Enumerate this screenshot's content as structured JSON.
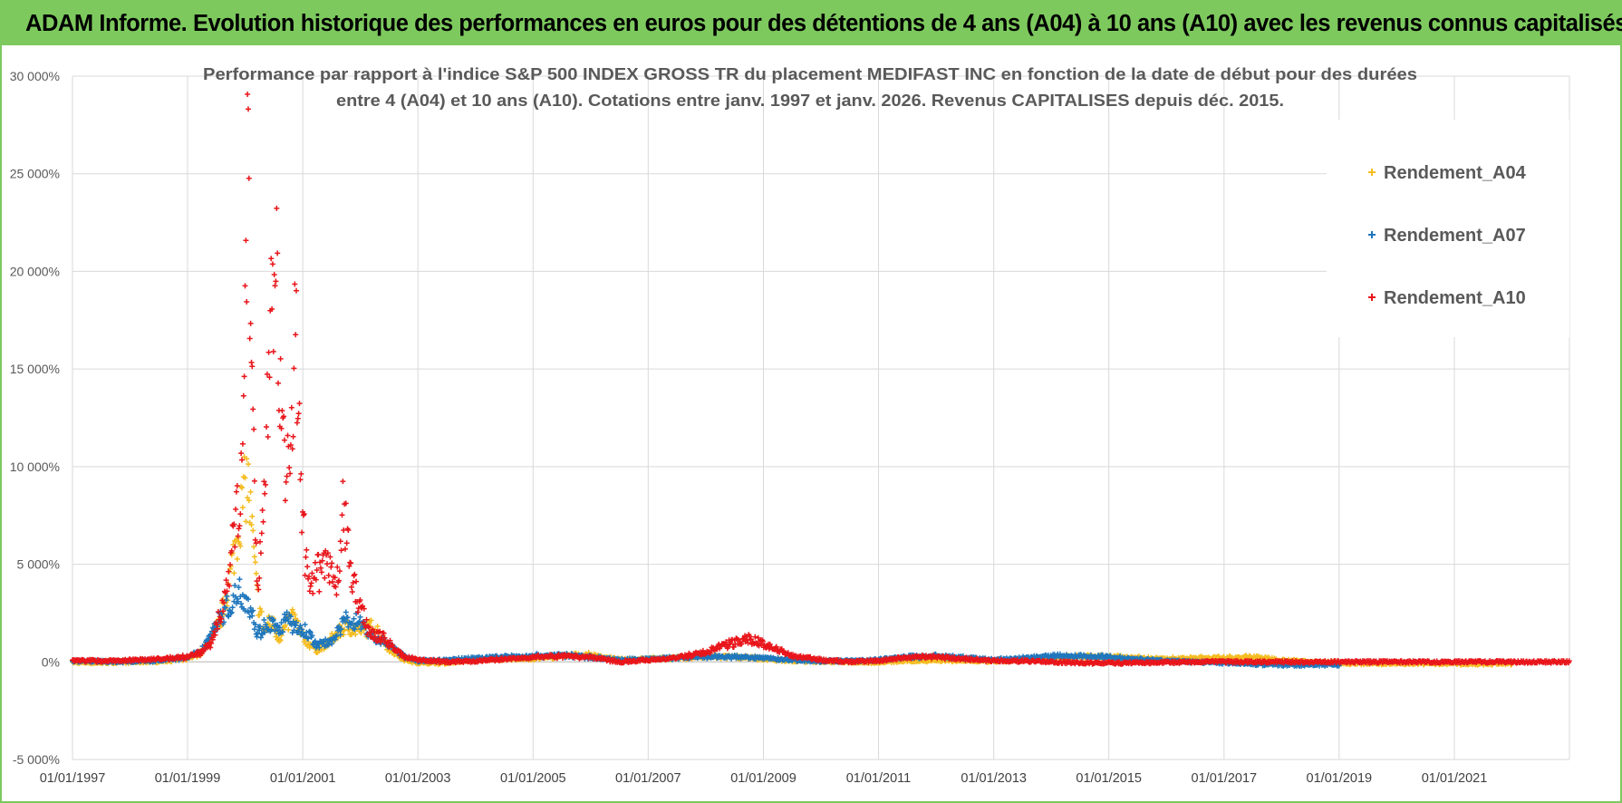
{
  "header": {
    "banner_title": "ADAM Informe. Evolution historique des performances en euros pour des détentions de 4 ans (A04) à 10 ans (A10) avec les revenus connus capitalisés"
  },
  "chart_data": {
    "type": "scatter",
    "title_line1": "Performance par rapport à l'indice S&P 500 INDEX GROSS TR  du placement MEDIFAST INC en fonction de la date de début pour des durées",
    "title_line2": "entre 4 (A04) et 10 ans (A10). Cotations entre janv. 1997 et janv. 2026. Revenus CAPITALISES depuis déc. 2015.",
    "xlabel": "",
    "ylabel": "",
    "x_tick_labels": [
      "01/01/1997",
      "01/01/1999",
      "01/01/2001",
      "01/01/2003",
      "01/01/2005",
      "01/01/2007",
      "01/01/2009",
      "01/01/2011",
      "01/01/2013",
      "01/01/2015",
      "01/01/2017",
      "01/01/2019",
      "01/01/2021"
    ],
    "xlim": [
      "1997-01-01",
      "2023-01-01"
    ],
    "y_tick_labels": [
      "30 000%",
      "25 000%",
      "20 000%",
      "15 000%",
      "10 000%",
      "5 000%",
      "0%",
      "-5 000%"
    ],
    "ylim": [
      -5000,
      30000
    ],
    "grid": true,
    "legend_position": "top-right",
    "marker": "+",
    "series": [
      {
        "name": "Rendement_A04",
        "color": "#f5bd22",
        "end_date": "2022-01-01",
        "points": [
          [
            "1997-01-01",
            -20
          ],
          [
            "1997-07-01",
            -40
          ],
          [
            "1998-01-01",
            -20
          ],
          [
            "1998-07-01",
            30
          ],
          [
            "1999-01-01",
            150
          ],
          [
            "1999-04-01",
            500
          ],
          [
            "1999-06-01",
            1200
          ],
          [
            "1999-08-01",
            2200
          ],
          [
            "1999-10-01",
            4500
          ],
          [
            "1999-12-01",
            7500
          ],
          [
            "2000-01-15",
            9500
          ],
          [
            "2000-02-15",
            6500
          ],
          [
            "2000-03-15",
            3500
          ],
          [
            "2000-05-01",
            1500
          ],
          [
            "2000-06-15",
            2200
          ],
          [
            "2000-08-01",
            1200
          ],
          [
            "2000-09-15",
            1800
          ],
          [
            "2000-11-01",
            2400
          ],
          [
            "2000-12-15",
            1500
          ],
          [
            "2001-02-01",
            1000
          ],
          [
            "2001-04-01",
            600
          ],
          [
            "2001-06-01",
            900
          ],
          [
            "2001-08-01",
            1400
          ],
          [
            "2001-10-01",
            1800
          ],
          [
            "2002-01-01",
            1600
          ],
          [
            "2002-04-01",
            1800
          ],
          [
            "2002-07-01",
            700
          ],
          [
            "2002-10-01",
            100
          ],
          [
            "2003-01-01",
            -50
          ],
          [
            "2003-07-01",
            -50
          ],
          [
            "2004-01-01",
            100
          ],
          [
            "2004-07-01",
            150
          ],
          [
            "2005-01-01",
            150
          ],
          [
            "2005-07-01",
            300
          ],
          [
            "2006-01-01",
            350
          ],
          [
            "2006-07-01",
            100
          ],
          [
            "2007-01-01",
            150
          ],
          [
            "2007-07-01",
            200
          ],
          [
            "2008-01-01",
            250
          ],
          [
            "2008-07-01",
            250
          ],
          [
            "2009-01-01",
            150
          ],
          [
            "2009-07-01",
            50
          ],
          [
            "2010-01-01",
            20
          ],
          [
            "2010-07-01",
            0
          ],
          [
            "2011-01-01",
            -20
          ],
          [
            "2011-07-01",
            50
          ],
          [
            "2012-01-01",
            80
          ],
          [
            "2012-07-01",
            60
          ],
          [
            "2013-01-01",
            20
          ],
          [
            "2013-07-01",
            100
          ],
          [
            "2014-01-01",
            200
          ],
          [
            "2014-07-01",
            300
          ],
          [
            "2015-01-01",
            250
          ],
          [
            "2015-07-01",
            200
          ],
          [
            "2016-01-01",
            150
          ],
          [
            "2016-07-01",
            200
          ],
          [
            "2017-01-01",
            200
          ],
          [
            "2017-07-01",
            250
          ],
          [
            "2018-01-01",
            100
          ],
          [
            "2018-07-01",
            0
          ],
          [
            "2019-01-01",
            -50
          ],
          [
            "2019-07-01",
            -80
          ],
          [
            "2020-01-01",
            -80
          ],
          [
            "2020-07-01",
            -80
          ],
          [
            "2021-01-01",
            -90
          ],
          [
            "2021-07-01",
            -90
          ],
          [
            "2022-01-01",
            -90
          ]
        ]
      },
      {
        "name": "Rendement_A07",
        "color": "#1f77bd",
        "end_date": "2019-01-01",
        "points": [
          [
            "1997-01-01",
            50
          ],
          [
            "1997-07-01",
            20
          ],
          [
            "1998-01-01",
            20
          ],
          [
            "1998-07-01",
            80
          ],
          [
            "1999-01-01",
            200
          ],
          [
            "1999-04-01",
            600
          ],
          [
            "1999-06-01",
            1500
          ],
          [
            "1999-08-01",
            2300
          ],
          [
            "1999-10-01",
            3000
          ],
          [
            "1999-12-01",
            3600
          ],
          [
            "2000-01-15",
            3200
          ],
          [
            "2000-02-15",
            2600
          ],
          [
            "2000-03-15",
            1400
          ],
          [
            "2000-05-01",
            1800
          ],
          [
            "2000-06-15",
            2000
          ],
          [
            "2000-08-01",
            1500
          ],
          [
            "2000-09-15",
            2200
          ],
          [
            "2000-11-01",
            1800
          ],
          [
            "2000-12-15",
            1600
          ],
          [
            "2001-02-01",
            1500
          ],
          [
            "2001-04-01",
            800
          ],
          [
            "2001-06-01",
            1000
          ],
          [
            "2001-08-01",
            1300
          ],
          [
            "2001-10-01",
            2200
          ],
          [
            "2002-01-01",
            2000
          ],
          [
            "2002-04-01",
            1200
          ],
          [
            "2002-07-01",
            900
          ],
          [
            "2002-10-01",
            300
          ],
          [
            "2003-01-01",
            50
          ],
          [
            "2003-07-01",
            80
          ],
          [
            "2004-01-01",
            200
          ],
          [
            "2004-07-01",
            250
          ],
          [
            "2005-01-01",
            300
          ],
          [
            "2005-07-01",
            350
          ],
          [
            "2006-01-01",
            250
          ],
          [
            "2006-07-01",
            100
          ],
          [
            "2007-01-01",
            150
          ],
          [
            "2007-07-01",
            200
          ],
          [
            "2008-01-01",
            250
          ],
          [
            "2008-07-01",
            250
          ],
          [
            "2009-01-01",
            200
          ],
          [
            "2009-07-01",
            100
          ],
          [
            "2010-01-01",
            50
          ],
          [
            "2010-07-01",
            50
          ],
          [
            "2011-01-01",
            100
          ],
          [
            "2011-07-01",
            250
          ],
          [
            "2012-01-01",
            300
          ],
          [
            "2012-07-01",
            200
          ],
          [
            "2013-01-01",
            100
          ],
          [
            "2013-07-01",
            200
          ],
          [
            "2014-01-01",
            300
          ],
          [
            "2014-07-01",
            300
          ],
          [
            "2015-01-01",
            250
          ],
          [
            "2015-07-01",
            150
          ],
          [
            "2016-01-01",
            50
          ],
          [
            "2016-07-01",
            0
          ],
          [
            "2017-01-01",
            -50
          ],
          [
            "2017-07-01",
            -100
          ],
          [
            "2018-01-01",
            -150
          ],
          [
            "2018-07-01",
            -150
          ],
          [
            "2019-01-01",
            -150
          ]
        ]
      },
      {
        "name": "Rendement_A10",
        "color": "#e8161b",
        "end_date": "2023-01-01",
        "points": [
          [
            "1997-01-01",
            80
          ],
          [
            "1997-07-01",
            50
          ],
          [
            "1998-01-01",
            80
          ],
          [
            "1998-07-01",
            150
          ],
          [
            "1999-01-01",
            250
          ],
          [
            "1999-04-01",
            500
          ],
          [
            "1999-06-01",
            1000
          ],
          [
            "1999-08-01",
            2500
          ],
          [
            "1999-10-01",
            5000
          ],
          [
            "1999-12-01",
            9000
          ],
          [
            "2000-01-01",
            18000
          ],
          [
            "2000-01-20",
            25800
          ],
          [
            "2000-02-10",
            15000
          ],
          [
            "2000-03-01",
            8000
          ],
          [
            "2000-03-20",
            4000
          ],
          [
            "2000-04-15",
            6500
          ],
          [
            "2000-05-15",
            12000
          ],
          [
            "2000-06-15",
            18000
          ],
          [
            "2000-07-15",
            20000
          ],
          [
            "2000-08-15",
            13000
          ],
          [
            "2000-09-15",
            9000
          ],
          [
            "2000-10-15",
            12000
          ],
          [
            "2000-11-15",
            17000
          ],
          [
            "2000-12-15",
            10000
          ],
          [
            "2001-01-15",
            5500
          ],
          [
            "2001-02-15",
            3500
          ],
          [
            "2001-04-01",
            4500
          ],
          [
            "2001-06-01",
            5000
          ],
          [
            "2001-08-01",
            3500
          ],
          [
            "2001-09-15",
            8000
          ],
          [
            "2001-11-01",
            4500
          ],
          [
            "2002-01-01",
            2800
          ],
          [
            "2002-03-01",
            1500
          ],
          [
            "2002-06-01",
            1200
          ],
          [
            "2002-08-01",
            700
          ],
          [
            "2002-10-01",
            300
          ],
          [
            "2003-01-01",
            100
          ],
          [
            "2003-07-01",
            0
          ],
          [
            "2004-01-01",
            50
          ],
          [
            "2004-07-01",
            150
          ],
          [
            "2005-01-01",
            250
          ],
          [
            "2005-07-01",
            300
          ],
          [
            "2006-01-01",
            250
          ],
          [
            "2006-07-01",
            0
          ],
          [
            "2007-01-01",
            100
          ],
          [
            "2007-07-01",
            200
          ],
          [
            "2008-01-01",
            500
          ],
          [
            "2008-07-01",
            1000
          ],
          [
            "2008-10-01",
            1200
          ],
          [
            "2009-01-01",
            900
          ],
          [
            "2009-07-01",
            300
          ],
          [
            "2010-01-01",
            100
          ],
          [
            "2010-07-01",
            0
          ],
          [
            "2011-01-01",
            50
          ],
          [
            "2011-07-01",
            250
          ],
          [
            "2012-01-01",
            250
          ],
          [
            "2012-07-01",
            150
          ],
          [
            "2013-01-01",
            50
          ],
          [
            "2013-07-01",
            50
          ],
          [
            "2014-01-01",
            0
          ],
          [
            "2014-07-01",
            -50
          ],
          [
            "2015-01-01",
            -50
          ],
          [
            "2015-07-01",
            -50
          ],
          [
            "2016-01-01",
            -30
          ],
          [
            "2016-07-01",
            0
          ],
          [
            "2017-01-01",
            0
          ],
          [
            "2017-07-01",
            0
          ],
          [
            "2018-01-01",
            0
          ],
          [
            "2018-07-01",
            0
          ],
          [
            "2019-01-01",
            0
          ],
          [
            "2020-01-01",
            0
          ],
          [
            "2021-01-01",
            0
          ],
          [
            "2022-01-01",
            0
          ],
          [
            "2023-01-01",
            0
          ]
        ]
      }
    ]
  }
}
